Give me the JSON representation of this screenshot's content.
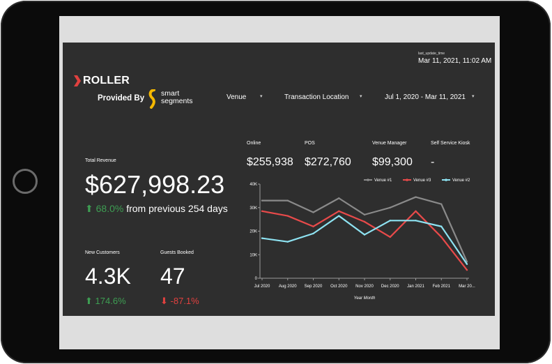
{
  "dashboard": {
    "last_update_label": "last_update_time",
    "last_update_value": "Mar 11, 2021, 11:02 AM",
    "logo_text": "ROLLER",
    "provided_by": "Provided By",
    "partner_line1": "smart",
    "partner_line2": "segments"
  },
  "filters": [
    {
      "label": "Venue"
    },
    {
      "label": "Transaction Location"
    },
    {
      "label": "Jul 1, 2020 - Mar 11, 2021"
    }
  ],
  "total_revenue": {
    "label": "Total Revenue",
    "value": "$627,998.23",
    "change": "68.0%",
    "change_suffix": "from previous 254 days"
  },
  "new_customers": {
    "label": "New Customers",
    "value": "4.3K",
    "change": "174.6%"
  },
  "guests_booked": {
    "label": "Guests Booked",
    "value": "47",
    "change": "-87.1%"
  },
  "channels": [
    {
      "label": "Online",
      "value": "$255,938"
    },
    {
      "label": "POS",
      "value": "$272,760"
    },
    {
      "label": "Venue Manager",
      "value": "$99,300"
    },
    {
      "label": "Self Service Kiosk",
      "value": "-"
    }
  ],
  "icons": {
    "up": "arrow-up-icon",
    "down": "arrow-down-icon",
    "caret": "caret-down-icon"
  },
  "colors": {
    "up": "#3e9e53",
    "down": "#e0413f",
    "background": "#2e2e2e"
  },
  "chart_data": {
    "type": "line",
    "categories": [
      "Jul 2020",
      "Aug 2020",
      "Sep 2020",
      "Oct 2020",
      "Nov 2020",
      "Dec 2020",
      "Jan 2021",
      "Feb 2021",
      "Mar 20..."
    ],
    "ylim": [
      0,
      40000
    ],
    "yticks": [
      "0",
      "10K",
      "20K",
      "30K",
      "40K"
    ],
    "xlabel": "Year Month",
    "ylabel": "",
    "grid": false,
    "legend_position": "top-right",
    "series": [
      {
        "name": "Venue #1",
        "color": "#8a8a8a",
        "values": [
          33000,
          33000,
          28000,
          34000,
          27000,
          30000,
          34500,
          31500,
          7000
        ]
      },
      {
        "name": "Venue #3",
        "color": "#e84a4a",
        "values": [
          28500,
          26500,
          22000,
          28500,
          24000,
          17500,
          28500,
          17500,
          3500
        ]
      },
      {
        "name": "Venue #2",
        "color": "#8ee3f2",
        "values": [
          17000,
          15500,
          19000,
          26500,
          18500,
          24500,
          24500,
          22000,
          6000
        ]
      }
    ]
  }
}
